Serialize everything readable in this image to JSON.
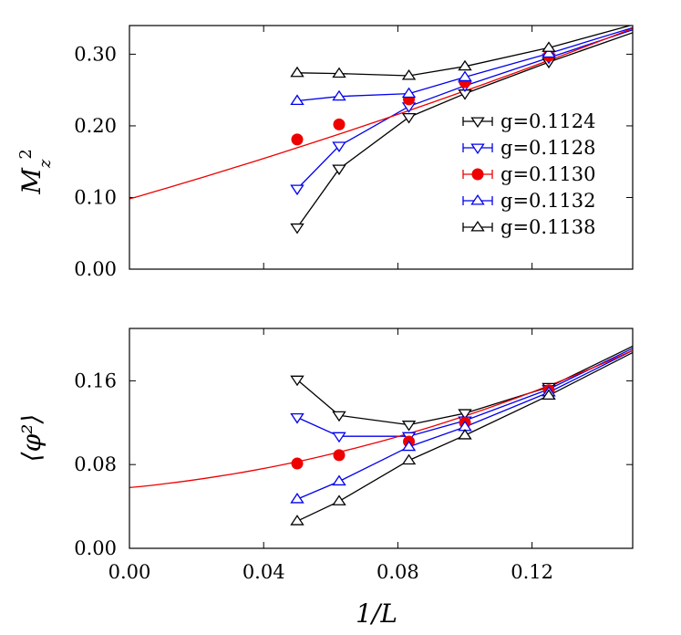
{
  "colors": {
    "black": "#000000",
    "blue": "#0000ee",
    "red": "#ee0000"
  },
  "chart_data": [
    {
      "type": "scatter",
      "ylabel": "M_z^2",
      "xlim": [
        0.0,
        0.15
      ],
      "ylim": [
        0.0,
        0.34
      ],
      "yticks": [
        "0.00",
        "0.10",
        "0.20",
        "0.30"
      ],
      "grid": false,
      "legend_position": "right",
      "series": [
        {
          "name": "g=0.1124",
          "color": "#000000",
          "marker": "triangle-down",
          "x": [
            0.05,
            0.0625,
            0.0833,
            0.1,
            0.125
          ],
          "y": [
            0.058,
            0.14,
            0.212,
            0.245,
            0.289
          ]
        },
        {
          "name": "g=0.1128",
          "color": "#0000ee",
          "marker": "triangle-down",
          "x": [
            0.05,
            0.0625,
            0.0833,
            0.1,
            0.125
          ],
          "y": [
            0.112,
            0.172,
            0.227,
            0.256,
            0.295
          ]
        },
        {
          "name": "g=0.1130",
          "color": "#ee0000",
          "marker": "circle",
          "x": [
            0.05,
            0.0625,
            0.0833,
            0.1,
            0.125
          ],
          "y": [
            0.181,
            0.202,
            0.237,
            0.261,
            0.298
          ],
          "fit": {
            "x": [
              0.0,
              0.15
            ],
            "y": [
              0.098,
              0.336
            ]
          }
        },
        {
          "name": "g=0.1132",
          "color": "#0000ee",
          "marker": "triangle-up",
          "x": [
            0.05,
            0.0625,
            0.0833,
            0.1,
            0.125
          ],
          "y": [
            0.235,
            0.241,
            0.245,
            0.268,
            0.301
          ]
        },
        {
          "name": "g=0.1138",
          "color": "#000000",
          "marker": "triangle-up",
          "x": [
            0.05,
            0.0625,
            0.0833,
            0.1,
            0.125
          ],
          "y": [
            0.274,
            0.273,
            0.27,
            0.283,
            0.309
          ]
        }
      ],
      "extra_lines": [
        {
          "color": "#000000",
          "x": [
            0.125,
            0.15
          ],
          "y": [
            0.289,
            0.33
          ]
        },
        {
          "color": "#0000ee",
          "x": [
            0.125,
            0.15
          ],
          "y": [
            0.295,
            0.334
          ]
        },
        {
          "color": "#0000ee",
          "x": [
            0.125,
            0.15
          ],
          "y": [
            0.301,
            0.337
          ]
        },
        {
          "color": "#000000",
          "x": [
            0.125,
            0.15
          ],
          "y": [
            0.309,
            0.341
          ]
        }
      ]
    },
    {
      "type": "scatter",
      "ylabel": "⟨φ²⟩",
      "xlabel": "1/L",
      "xlim": [
        0.0,
        0.15
      ],
      "ylim": [
        0.0,
        0.21
      ],
      "xticks": [
        "0.00",
        "0.04",
        "0.08",
        "0.12"
      ],
      "yticks": [
        "0.00",
        "0.08",
        "0.16"
      ],
      "grid": false,
      "series": [
        {
          "name": "g=0.1124",
          "color": "#000000",
          "marker": "triangle-down",
          "x": [
            0.05,
            0.0625,
            0.0833,
            0.1,
            0.125
          ],
          "y": [
            0.161,
            0.127,
            0.118,
            0.129,
            0.154
          ]
        },
        {
          "name": "g=0.1128",
          "color": "#0000ee",
          "marker": "triangle-down",
          "x": [
            0.05,
            0.0625,
            0.0833,
            0.1,
            0.125
          ],
          "y": [
            0.125,
            0.107,
            0.107,
            0.122,
            0.152
          ]
        },
        {
          "name": "g=0.1130",
          "color": "#ee0000",
          "marker": "circle",
          "x": [
            0.05,
            0.0625,
            0.0833,
            0.1,
            0.125
          ],
          "y": [
            0.081,
            0.089,
            0.102,
            0.12,
            0.151
          ],
          "fit": {
            "x": [
              0.0,
              0.15
            ],
            "y": [
              0.058,
              0.189
            ]
          }
        },
        {
          "name": "g=0.1132",
          "color": "#0000ee",
          "marker": "triangle-up",
          "x": [
            0.05,
            0.0625,
            0.0833,
            0.1,
            0.125
          ],
          "y": [
            0.047,
            0.064,
            0.097,
            0.116,
            0.149
          ]
        },
        {
          "name": "g=0.1138",
          "color": "#000000",
          "marker": "triangle-up",
          "x": [
            0.05,
            0.0625,
            0.0833,
            0.1,
            0.125
          ],
          "y": [
            0.026,
            0.045,
            0.084,
            0.108,
            0.146
          ]
        }
      ],
      "extra_lines": [
        {
          "color": "#000000",
          "x": [
            0.125,
            0.15
          ],
          "y": [
            0.146,
            0.187
          ]
        },
        {
          "color": "#0000ee",
          "x": [
            0.125,
            0.15
          ],
          "y": [
            0.149,
            0.189
          ]
        },
        {
          "color": "#0000ee",
          "x": [
            0.125,
            0.15
          ],
          "y": [
            0.152,
            0.191
          ]
        },
        {
          "color": "#000000",
          "x": [
            0.125,
            0.15
          ],
          "y": [
            0.154,
            0.193
          ]
        }
      ]
    }
  ]
}
